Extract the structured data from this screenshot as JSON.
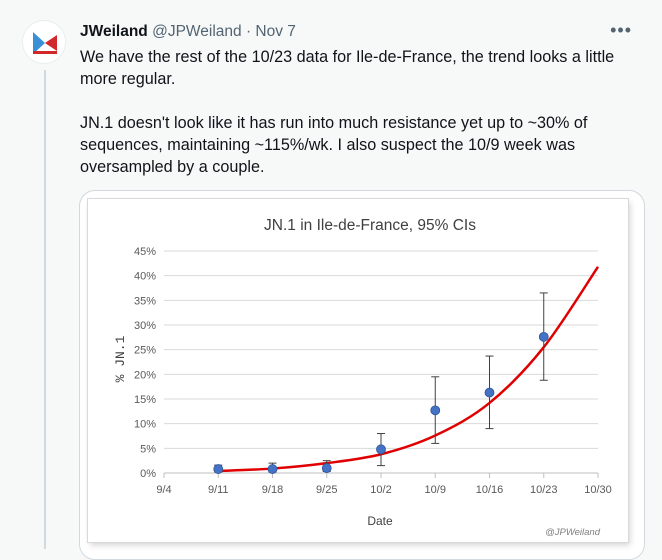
{
  "author": {
    "name": "JWeiland",
    "handle": "@JPWeiland",
    "separator": "·",
    "date": "Nov 7"
  },
  "menu_icon": "more-dots-icon",
  "tweet": {
    "paragraph1": "We have the rest of the 10/23 data for Ile-de-France, the trend looks a little more regular.",
    "paragraph2": "JN.1 doesn't look like it has run into much resistance yet up to ~30% of sequences, maintaining ~115%/wk.  I also suspect the 10/9 week was oversampled by a couple."
  },
  "chart_data": {
    "type": "scatter",
    "title": "JN.1 in Ile-de-France, 95% CIs",
    "xlabel": "Date",
    "ylabel": "% JN.1",
    "watermark": "@JPWeiland",
    "x_ticks": [
      "9/4",
      "9/11",
      "9/18",
      "9/25",
      "10/2",
      "10/9",
      "10/16",
      "10/23",
      "10/30"
    ],
    "y_ticks": [
      "0%",
      "5%",
      "10%",
      "15%",
      "20%",
      "25%",
      "30%",
      "35%",
      "40%",
      "45%"
    ],
    "ylim": [
      0,
      45
    ],
    "grid": "horizontal",
    "point_color": "#4472c4",
    "fit_color": "#e00000",
    "points": [
      {
        "x": "9/11",
        "y": 0.8,
        "lo": 0.2,
        "hi": 1.6
      },
      {
        "x": "9/18",
        "y": 0.8,
        "lo": 0.2,
        "hi": 2.0
      },
      {
        "x": "9/25",
        "y": 1.0,
        "lo": 0.3,
        "hi": 2.5
      },
      {
        "x": "10/2",
        "y": 4.8,
        "lo": 1.5,
        "hi": 8.0
      },
      {
        "x": "10/9",
        "y": 12.7,
        "lo": 6.0,
        "hi": 19.5
      },
      {
        "x": "10/16",
        "y": 16.3,
        "lo": 9.0,
        "hi": 23.7
      },
      {
        "x": "10/23",
        "y": 27.6,
        "lo": 18.8,
        "hi": 36.5
      }
    ],
    "fit": {
      "x": [
        "9/11",
        "9/18",
        "9/25",
        "10/2",
        "10/9",
        "10/16",
        "10/23",
        "10/30"
      ],
      "y": [
        0.4,
        0.9,
        2.0,
        3.8,
        7.6,
        14.2,
        25.5,
        41.8
      ]
    }
  }
}
